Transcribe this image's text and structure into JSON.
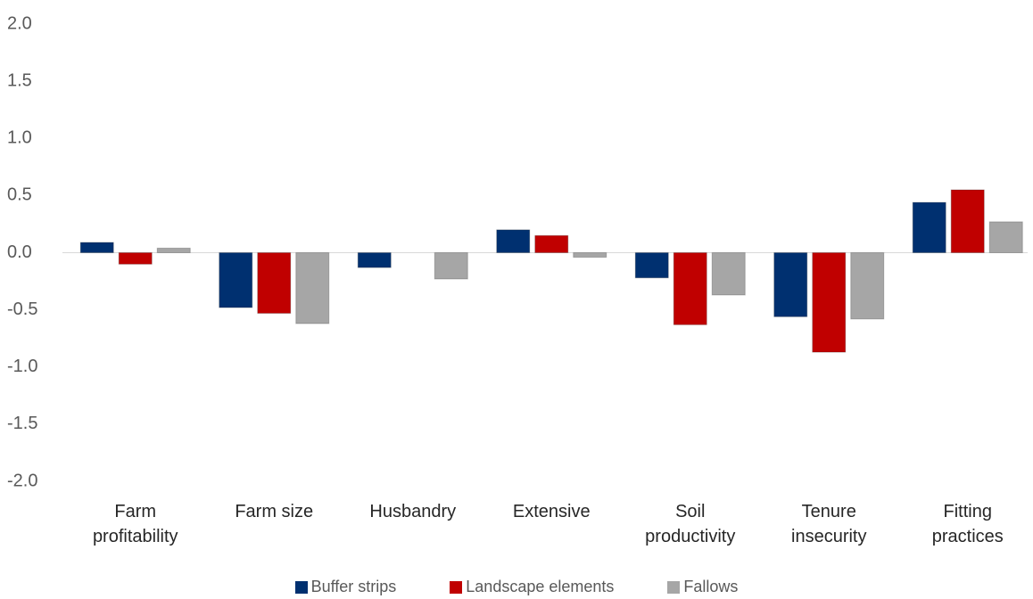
{
  "chart_data": {
    "type": "bar",
    "categories": [
      "Farm profitability",
      "Farm size",
      "Husbandry",
      "Extensive",
      "Soil productivity",
      "Tenure insecurity",
      "Fitting practices"
    ],
    "series": [
      {
        "name": "Buffer strips",
        "color": "#003070",
        "values": [
          0.09,
          -0.48,
          -0.13,
          0.2,
          -0.22,
          -0.56,
          0.44
        ]
      },
      {
        "name": "Landscape elements",
        "color": "#c00000",
        "values": [
          -0.1,
          -0.53,
          0,
          0.15,
          -0.63,
          -0.87,
          0.55
        ]
      },
      {
        "name": "Fallows",
        "color": "#a6a6a6",
        "values": [
          0.04,
          -0.62,
          -0.23,
          -0.04,
          -0.37,
          -0.58,
          0.27
        ]
      }
    ],
    "ylim": [
      -2,
      2
    ],
    "yticks": [
      {
        "value": -2,
        "label": "-2.0"
      },
      {
        "value": -1.5,
        "label": "-1.5"
      },
      {
        "value": -1,
        "label": "-1.0"
      },
      {
        "value": -0.5,
        "label": "-0.5"
      },
      {
        "value": 0,
        "label": "0.0"
      },
      {
        "value": 0.5,
        "label": "0.5"
      },
      {
        "value": 1,
        "label": "1.0"
      },
      {
        "value": 1.5,
        "label": "1.5"
      },
      {
        "value": 2,
        "label": "2.0"
      }
    ],
    "grid": false
  }
}
